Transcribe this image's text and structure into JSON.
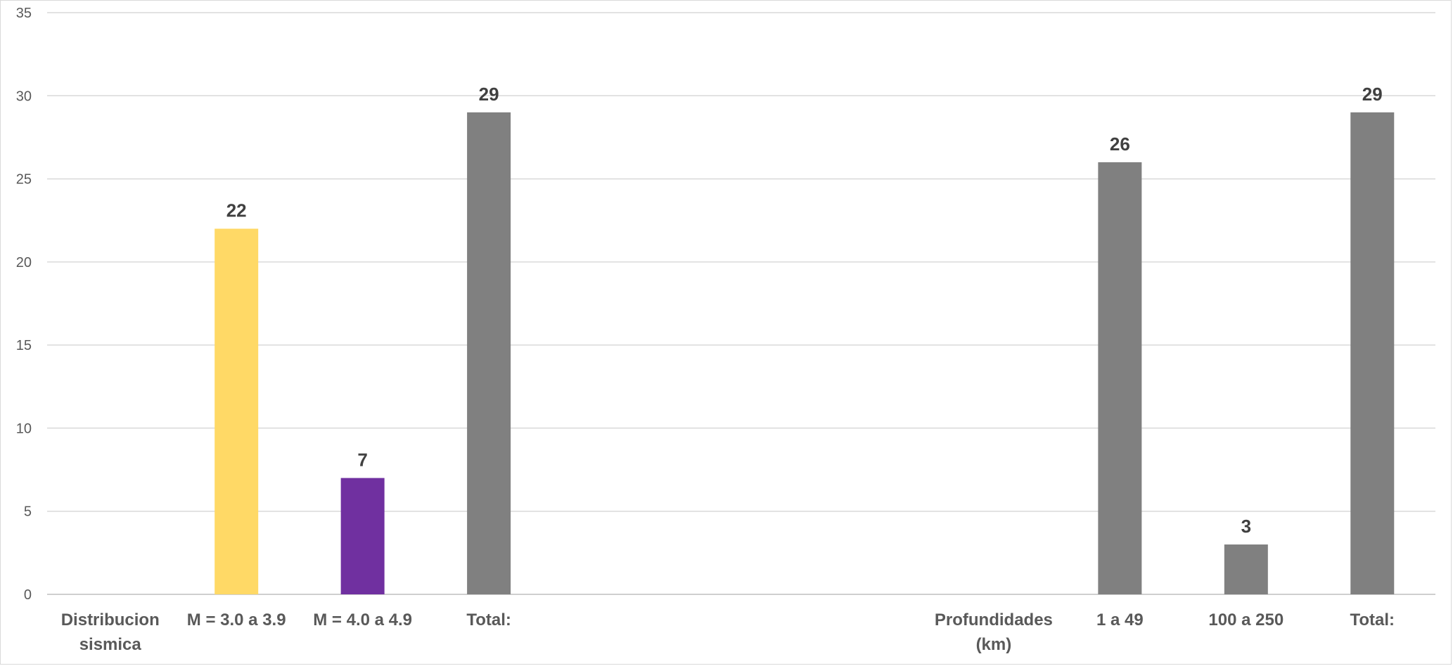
{
  "chart_data": {
    "type": "bar",
    "title": "",
    "xlabel": "",
    "ylabel": "",
    "ylim": [
      0,
      35
    ],
    "yticks": [
      0,
      5,
      10,
      15,
      20,
      25,
      30,
      35
    ],
    "grid": true,
    "legend": "none",
    "categories": [
      [
        "Distribucion",
        "sismica"
      ],
      [
        "M = 3.0 a 3.9"
      ],
      [
        "M = 4.0 a 4.9"
      ],
      [
        "Total:"
      ],
      [
        ""
      ],
      [
        ""
      ],
      [
        ""
      ],
      [
        "Profundidades",
        "(km)"
      ],
      [
        "1 a 49"
      ],
      [
        "100 a 250"
      ],
      [
        "Total:"
      ]
    ],
    "values": [
      null,
      22,
      7,
      29,
      null,
      null,
      null,
      null,
      26,
      3,
      29
    ],
    "colors": [
      null,
      "#FFD966",
      "#7030A0",
      "#808080",
      null,
      null,
      null,
      null,
      "#808080",
      "#808080",
      "#808080"
    ]
  }
}
